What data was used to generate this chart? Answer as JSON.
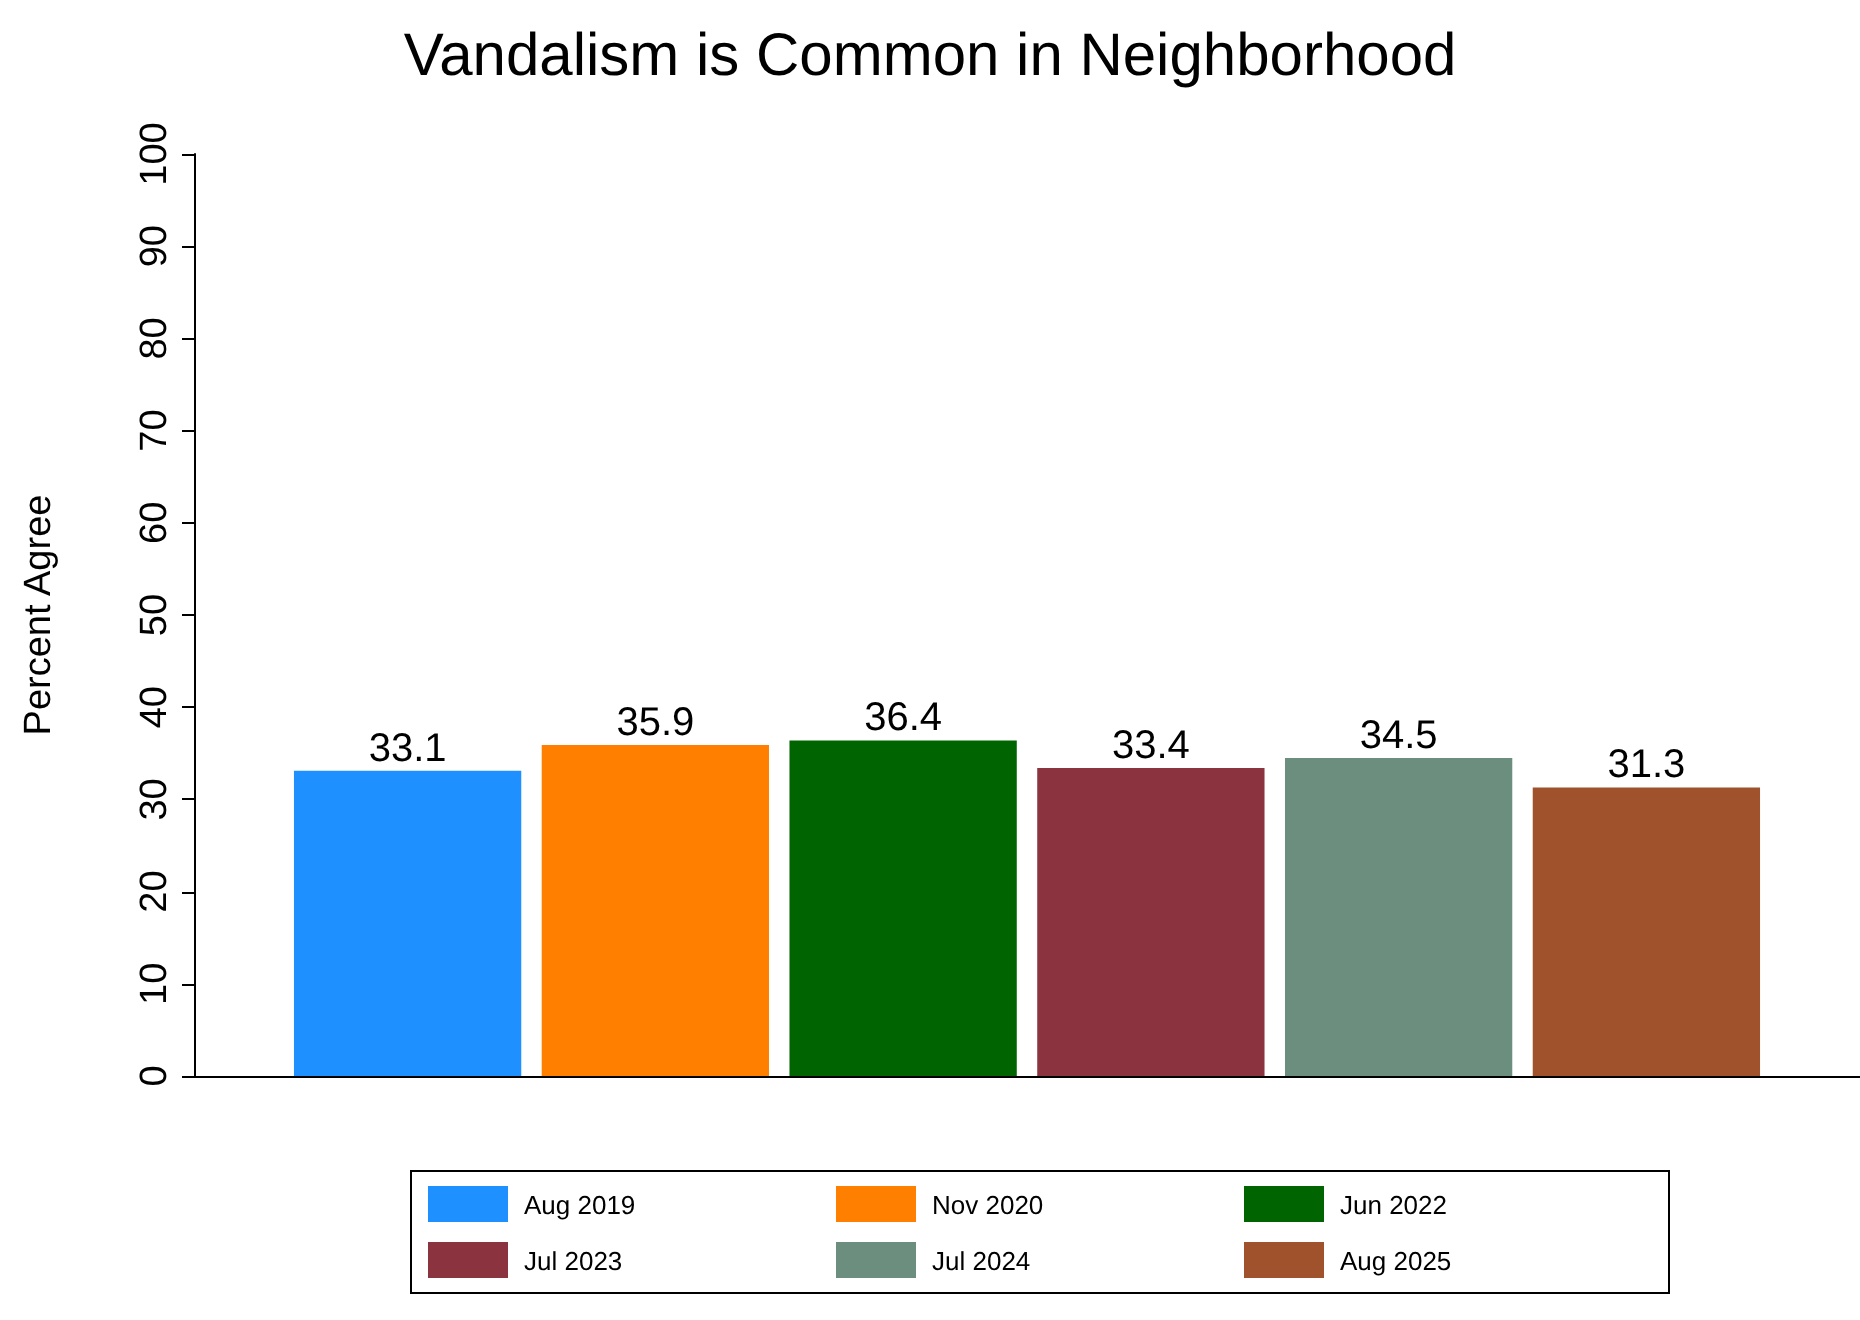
{
  "chart_data": {
    "type": "bar",
    "title": "Vandalism is Common in Neighborhood",
    "ylabel": "Percent Agree",
    "categories": [
      null
    ],
    "series": [
      {
        "name": "Aug 2019",
        "color": "#1e90ff",
        "values": [
          33.1
        ]
      },
      {
        "name": "Nov 2020",
        "color": "#ff7f00",
        "values": [
          35.9
        ]
      },
      {
        "name": "Jun 2022",
        "color": "#006400",
        "values": [
          36.4
        ]
      },
      {
        "name": "Jul 2023",
        "color": "#8b3440",
        "values": [
          33.4
        ]
      },
      {
        "name": "Jul 2024",
        "color": "#6b8e7f",
        "values": [
          34.5
        ]
      },
      {
        "name": "Aug 2025",
        "color": "#a0522d",
        "values": [
          31.3
        ]
      }
    ],
    "ylim": [
      0,
      100
    ],
    "yticks": [
      0,
      10,
      20,
      30,
      40,
      50,
      60,
      70,
      80,
      90,
      100
    ],
    "data_labels": true,
    "legend": "bottom"
  }
}
